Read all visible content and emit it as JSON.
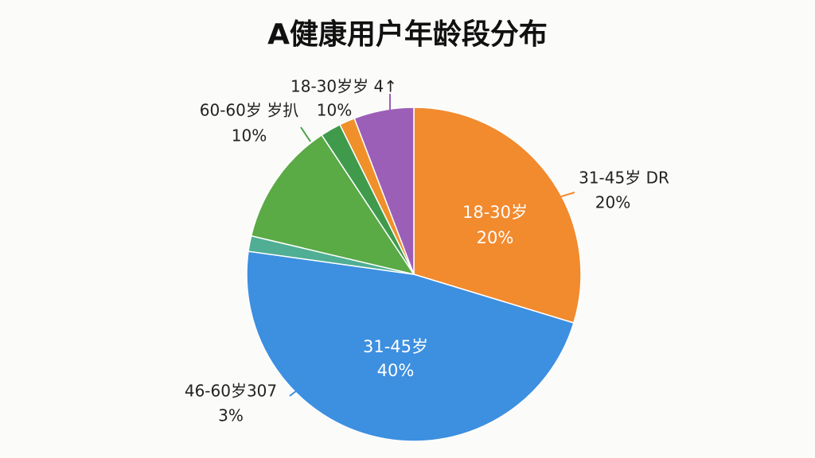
{
  "chart_data": {
    "type": "pie",
    "title": "A健康用户年龄段分布",
    "categories": [
      "18-30岁",
      "31-45岁",
      null,
      null,
      null,
      null,
      null
    ],
    "values": [
      29.7,
      47.5,
      1.5,
      12,
      2,
      1.5,
      5.8
    ],
    "colors": [
      "#f28a2e",
      "#3d8fe0",
      "#4fae93",
      "#5aaa46",
      "#3f9a4c",
      "#f0902a",
      "#9b5fb8"
    ],
    "annotations": [
      "20%",
      "40%",
      "18-30岁岁 4↑",
      "60-60岁 岁扒",
      "10%",
      "10%",
      "31-45岁 DR",
      "20%",
      "46-60岁307",
      "3%"
    ]
  }
}
